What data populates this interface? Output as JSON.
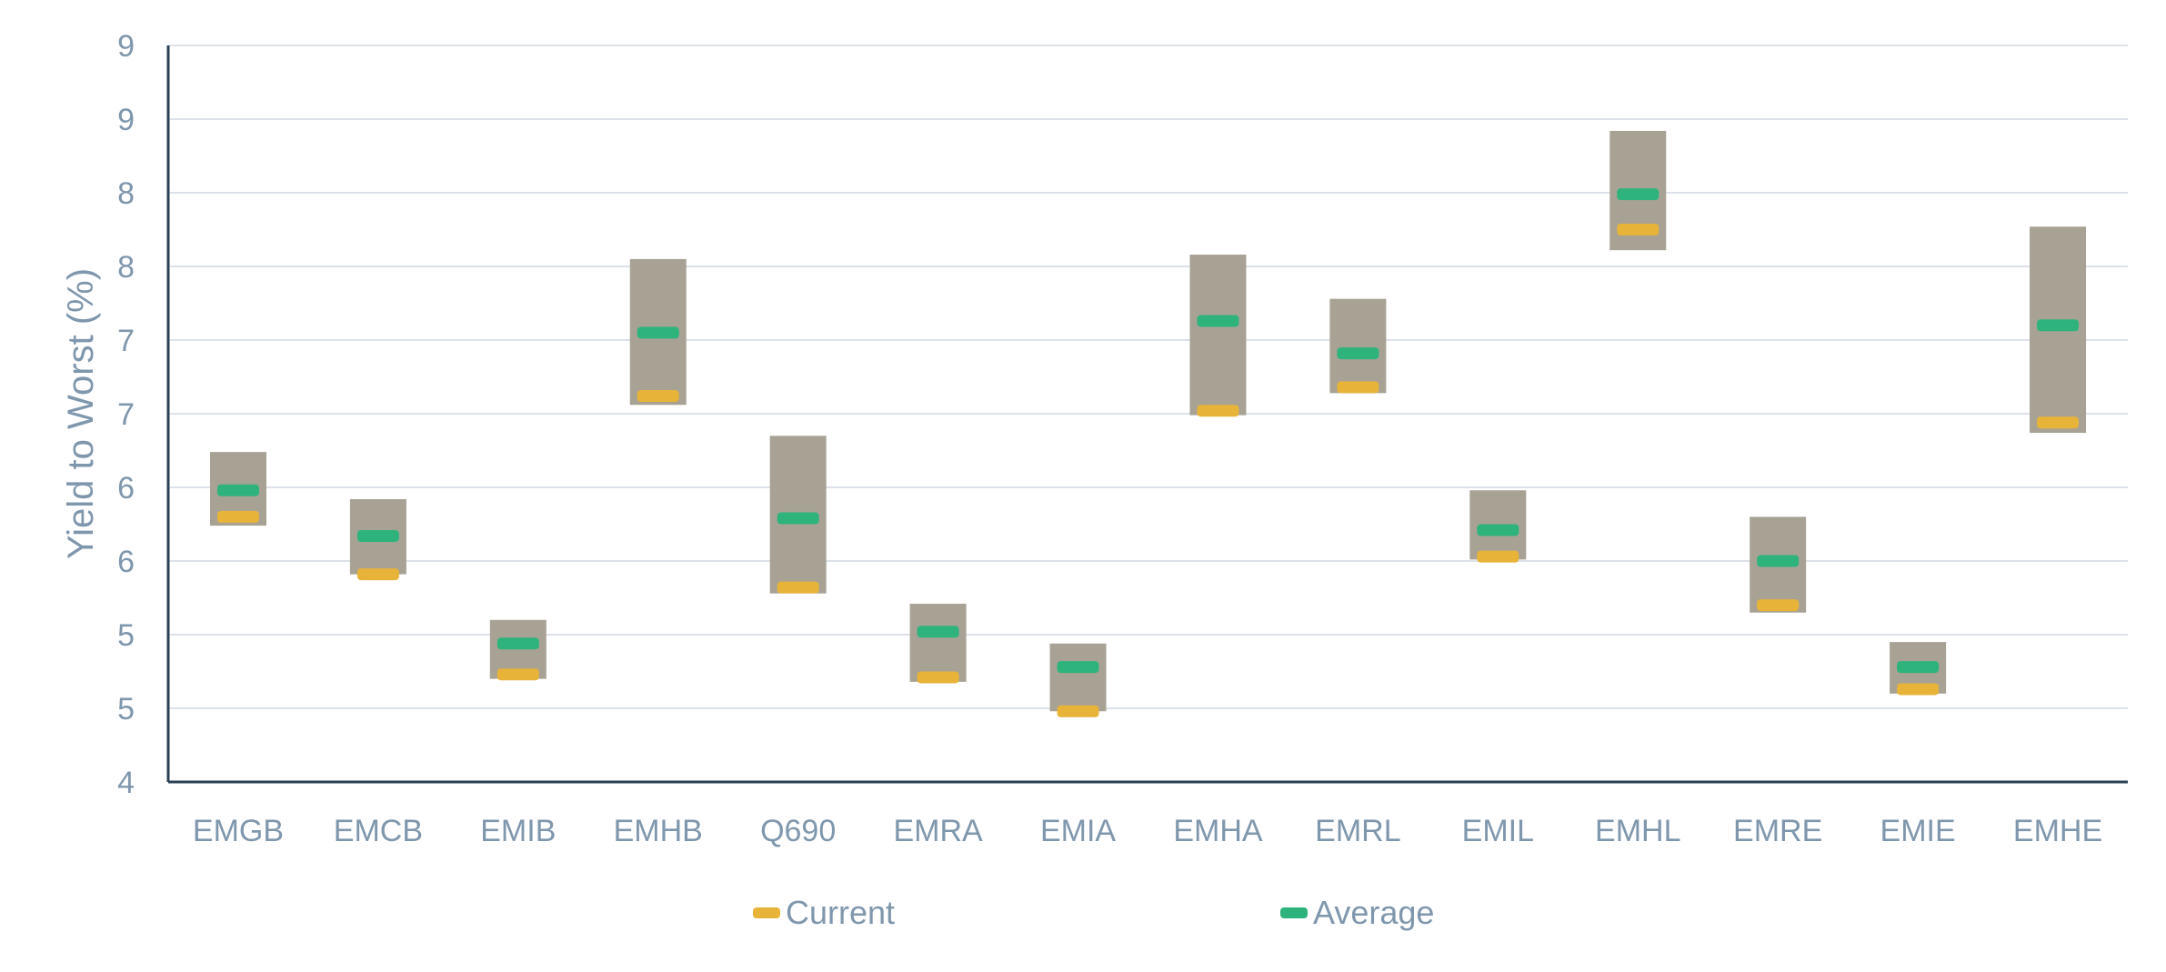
{
  "chart_data": {
    "type": "range-bar",
    "title": "",
    "xlabel": "",
    "ylabel": "Yield to Worst (%)",
    "ylim": [
      4,
      9
    ],
    "yticks": [
      4,
      4.5,
      5,
      5.5,
      6,
      6.5,
      7,
      7.5,
      8,
      8.5,
      9
    ],
    "ytick_labels": [
      "4",
      "5",
      "5",
      "6",
      "6",
      "7",
      "7",
      "8",
      "8",
      "9",
      "9"
    ],
    "grid": true,
    "legend": "bottom",
    "categories": [
      "EMGB",
      "EMCB",
      "EMIB",
      "EMHB",
      "Q690",
      "EMRA",
      "EMIA",
      "EMHA",
      "EMRL",
      "EMIL",
      "EMHL",
      "EMRE",
      "EMIE",
      "EMHE"
    ],
    "range": {
      "low": [
        5.74,
        5.41,
        4.7,
        6.56,
        5.28,
        4.68,
        4.48,
        6.49,
        6.64,
        5.51,
        7.61,
        5.15,
        4.6,
        6.37
      ],
      "high": [
        6.24,
        5.92,
        5.1,
        7.55,
        6.35,
        5.21,
        4.94,
        7.58,
        7.28,
        5.98,
        8.42,
        5.8,
        4.95,
        7.77
      ]
    },
    "series": [
      {
        "name": "Current",
        "color": "#e8b339",
        "values": [
          5.8,
          5.41,
          4.73,
          6.62,
          5.32,
          4.71,
          4.48,
          6.52,
          6.68,
          5.53,
          7.75,
          5.2,
          4.63,
          6.44
        ]
      },
      {
        "name": "Average",
        "color": "#2fb37c",
        "values": [
          5.98,
          5.67,
          4.94,
          7.05,
          5.79,
          5.02,
          4.78,
          7.13,
          6.91,
          5.71,
          7.99,
          5.5,
          4.78,
          7.1
        ]
      }
    ],
    "colors": {
      "range_bar": "#a8a295",
      "axis": "#2a4055",
      "grid": "#dde2ea",
      "text": "#7f97ad"
    }
  }
}
